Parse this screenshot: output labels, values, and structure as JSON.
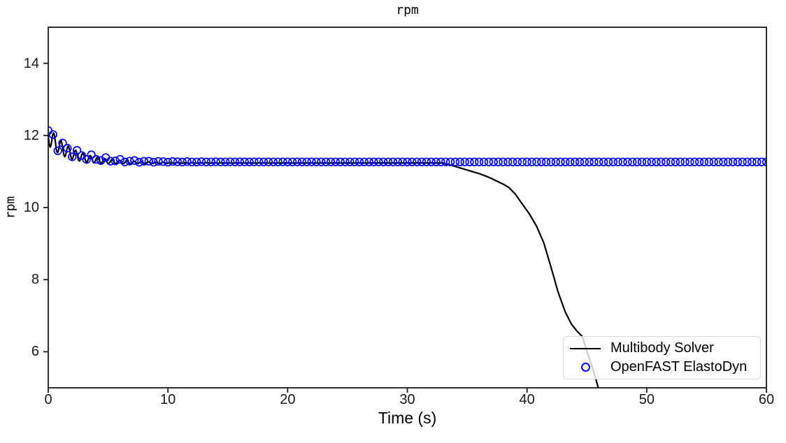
{
  "chart_data": {
    "type": "line",
    "title": "rpm",
    "xlabel": "Time (s)",
    "ylabel": "rpm",
    "xlim": [
      0,
      60
    ],
    "ylim": [
      5,
      15
    ],
    "x_ticks": [
      0,
      10,
      20,
      30,
      40,
      50,
      60
    ],
    "y_ticks": [
      6,
      8,
      10,
      12,
      14
    ],
    "grid": false,
    "legend_position": "lower right",
    "background_color": "#ffffff",
    "spine_color": "#1a1a1a",
    "series": [
      {
        "name": "Multibody Solver",
        "style": "line",
        "color": "#000000",
        "line_width": 2.2,
        "initial_rpm": 12.0,
        "steady_rpm": 11.235,
        "model": {
          "steady": 11.235,
          "a1": 0.765,
          "tau1": 1.8,
          "a2": 0.27,
          "tau2": 3.4,
          "period": 0.61,
          "phase": 0,
          "t_end": 33
        },
        "descent_keypoints": [
          [
            33.0,
            11.22
          ],
          [
            33.5,
            11.19
          ],
          [
            34.0,
            11.14
          ],
          [
            34.5,
            11.09
          ],
          [
            35.0,
            11.04
          ],
          [
            35.5,
            10.99
          ],
          [
            36.0,
            10.94
          ],
          [
            36.5,
            10.88
          ],
          [
            37.0,
            10.81
          ],
          [
            37.5,
            10.73
          ],
          [
            38.0,
            10.65
          ],
          [
            38.5,
            10.55
          ],
          [
            39.0,
            10.38
          ],
          [
            39.6,
            10.1
          ],
          [
            40.2,
            9.82
          ],
          [
            40.8,
            9.48
          ],
          [
            41.4,
            9.02
          ],
          [
            42.0,
            8.35
          ],
          [
            42.6,
            7.65
          ],
          [
            43.2,
            7.1
          ],
          [
            43.7,
            6.77
          ],
          [
            44.2,
            6.56
          ],
          [
            44.6,
            6.43
          ],
          [
            45.0,
            6.02
          ],
          [
            45.4,
            5.62
          ],
          [
            45.7,
            5.3
          ],
          [
            45.98,
            4.97
          ]
        ]
      },
      {
        "name": "OpenFAST ElastoDyn",
        "style": "circle-markers",
        "color": "#0000ff",
        "marker_interval_s": 0.4,
        "marker_radius_px": 5.3,
        "marker_stroke_px": 1.7,
        "initial_rpm": 12.13,
        "steady_rpm": 11.265,
        "model": {
          "steady": 11.265,
          "a1": 0.78,
          "tau1": 1.9,
          "a2": 0.26,
          "tau2": 3.2,
          "period": 0.615,
          "phase": -0.35,
          "t_end": 60
        }
      }
    ]
  }
}
